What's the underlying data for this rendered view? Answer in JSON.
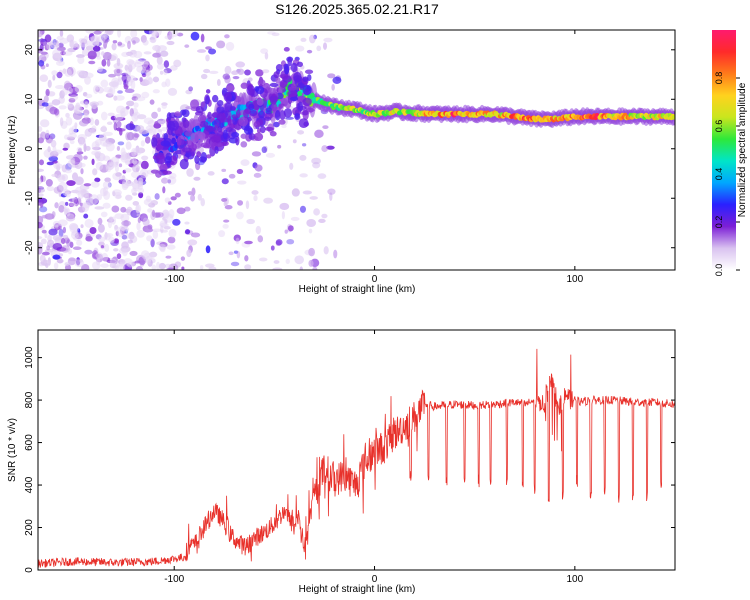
{
  "title": "S126.2025.365.02.21.R17",
  "colors": {
    "axis": "#000000",
    "snr_line": "#e8312b",
    "background": "#ffffff"
  },
  "chart_data": [
    {
      "type": "heatmap",
      "name": "spectrogram",
      "xlabel": "Height of straight line (km)",
      "ylabel": "Frequency (Hz)",
      "xlim": [
        -168,
        150
      ],
      "ylim": [
        -24.5,
        24
      ],
      "xticks": [
        -100,
        0,
        100
      ],
      "yticks": [
        -20,
        -10,
        0,
        10,
        20
      ],
      "colorbar": {
        "label": "Normalized spectral amplitude",
        "range": [
          0,
          1
        ],
        "ticks": [
          "0.0",
          "0.2",
          "0.4",
          "0.6",
          "0.8"
        ],
        "colormap": [
          "#ffffff",
          "#d9c2f0",
          "#7c1fd6",
          "#2a20ff",
          "#00a7ff",
          "#00e5c8",
          "#2ee83a",
          "#c9e61e",
          "#ffd21e",
          "#ff7a1a",
          "#ff2a2a",
          "#ff1a6e"
        ]
      },
      "ridge": {
        "x": [
          -108,
          -100,
          -90,
          -80,
          -70,
          -60,
          -50,
          -45,
          -40,
          -35,
          -30,
          -20,
          -10,
          0,
          10,
          20,
          30,
          40,
          50,
          60,
          70,
          80,
          90,
          100,
          110,
          120,
          130,
          140,
          150
        ],
        "freq": [
          0,
          1,
          3,
          5,
          7,
          8,
          9,
          12,
          13,
          11,
          10,
          8.5,
          8,
          7,
          7.5,
          7.2,
          7,
          7,
          7,
          7,
          6.5,
          6,
          6,
          6.5,
          6.5,
          6.5,
          6.5,
          6.5,
          6.5
        ],
        "amplitude": [
          0.25,
          0.3,
          0.35,
          0.4,
          0.4,
          0.45,
          0.5,
          0.55,
          0.6,
          0.6,
          0.6,
          0.6,
          0.65,
          0.65,
          0.7,
          0.7,
          0.85,
          0.9,
          0.8,
          0.75,
          0.85,
          0.85,
          0.8,
          0.85,
          0.95,
          0.8,
          0.75,
          0.75,
          0.7
        ]
      }
    },
    {
      "type": "line",
      "name": "snr",
      "xlabel": "Height of straight line (km)",
      "ylabel": "SNR (10 * v/v)",
      "xlim": [
        -168,
        150
      ],
      "ylim": [
        0,
        1130
      ],
      "xticks": [
        -100,
        0,
        100
      ],
      "yticks": [
        0,
        200,
        400,
        600,
        800,
        1000
      ],
      "series": [
        {
          "name": "SNR",
          "x": [
            -168,
            -150,
            -130,
            -110,
            -95,
            -88,
            -84,
            -80,
            -76,
            -72,
            -68,
            -64,
            -60,
            -55,
            -50,
            -45,
            -40,
            -38,
            -35,
            -30,
            -25,
            -20,
            -15,
            -10,
            -5,
            0,
            5,
            10,
            15,
            20,
            25,
            30,
            40,
            50,
            60,
            70,
            75,
            80,
            85,
            88,
            90,
            92,
            95,
            98,
            100,
            110,
            120,
            130,
            140,
            150
          ],
          "y": [
            30,
            40,
            35,
            40,
            60,
            120,
            200,
            260,
            220,
            150,
            110,
            90,
            130,
            160,
            200,
            260,
            180,
            250,
            80,
            350,
            480,
            420,
            450,
            400,
            500,
            560,
            580,
            640,
            680,
            720,
            780,
            770,
            780,
            775,
            780,
            790,
            780,
            800,
            780,
            900,
            840,
            760,
            820,
            800,
            790,
            800,
            800,
            790,
            790,
            780
          ],
          "dropouts": {
            "x": [
              18,
              27,
              36,
              45,
              52,
              58,
              66,
              74,
              80,
              87,
              94,
              101,
              108,
              115,
              122,
              129,
              136,
              143
            ],
            "y": [
              450,
              420,
              410,
              430,
              420,
              410,
              400,
              390,
              380,
              350,
              360,
              420,
              350,
              360,
              340,
              340,
              350,
              390
            ]
          }
        }
      ]
    }
  ]
}
